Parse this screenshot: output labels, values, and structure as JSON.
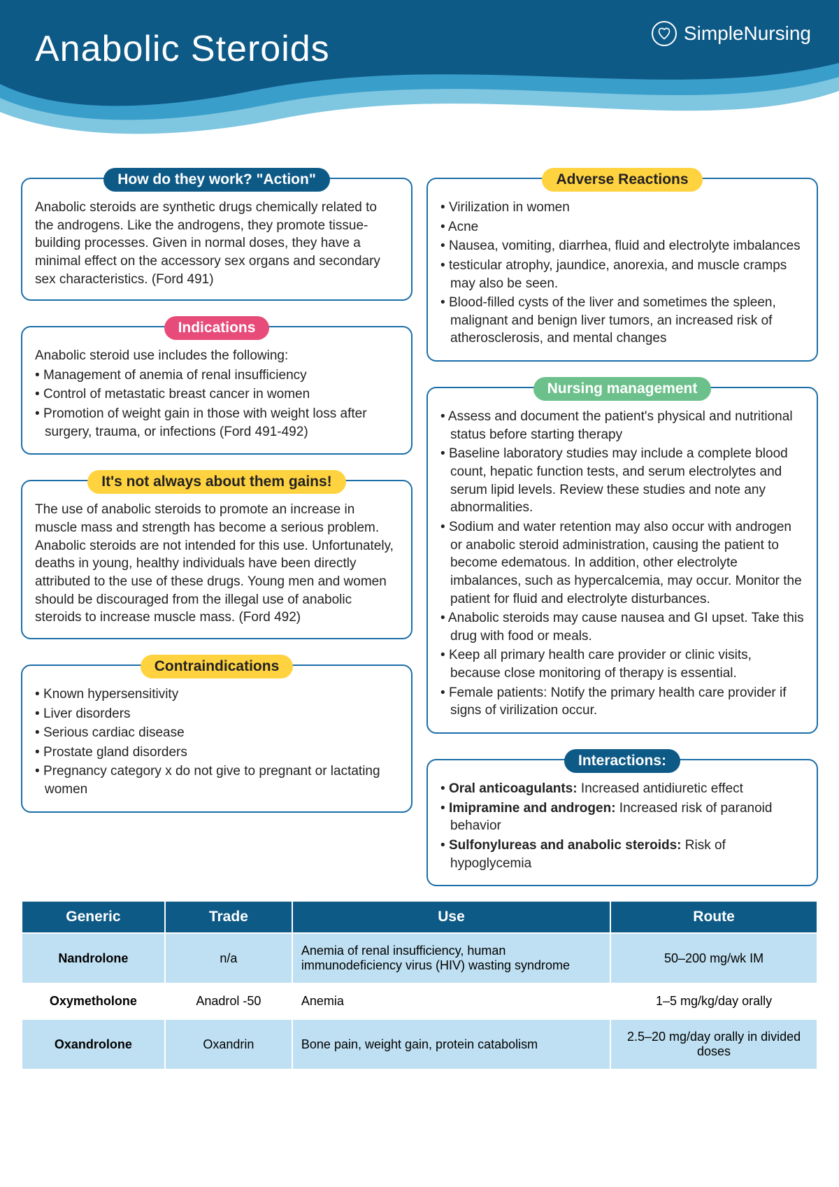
{
  "header": {
    "title": "Anabolic Steroids",
    "brand": "SimpleNursing"
  },
  "colors": {
    "header_dark": "#0e5a87",
    "header_mid": "#3a9ecb",
    "header_light": "#7fc6e0",
    "card_border": "#1b6ea8",
    "pill_blue": "#0e5a87",
    "pill_pink": "#e74b7a",
    "pill_yellow": "#ffd23f",
    "pill_green": "#6cc08b",
    "table_header": "#0e5a87",
    "table_row_alt": "#bfe0f2"
  },
  "cards": {
    "action": {
      "title": "How do they work? \"Action\"",
      "title_bg": "#0e5a87",
      "title_color": "#ffffff",
      "body": "Anabolic steroids are synthetic drugs chemically related to the androgens. Like the androgens, they promote tissue-building processes. Given in normal doses, they have a minimal effect on the accessory sex organs and secondary sex characteristics. (Ford 491)"
    },
    "indications": {
      "title": "Indications",
      "title_bg": "#e74b7a",
      "title_color": "#ffffff",
      "intro": "Anabolic steroid use includes the following:",
      "items": [
        "Management of anemia of renal insufficiency",
        "Control of metastatic breast cancer in women",
        "Promotion of weight gain in those with weight loss after surgery, trauma, or infections (Ford 491-492)"
      ]
    },
    "gains": {
      "title": "It's not always about them gains!",
      "title_bg": "#ffd23f",
      "title_color": "#222222",
      "body": "The use of anabolic steroids to promote an increase in muscle mass and strength has become a serious problem. Anabolic steroids are not intended for this use. Unfortunately, deaths in young, healthy individuals have been directly attributed to the use of these drugs. Young men and women should be discouraged from the illegal use of anabolic steroids to increase muscle mass. (Ford 492)"
    },
    "contra": {
      "title": "Contraindications",
      "title_bg": "#ffd23f",
      "title_color": "#222222",
      "items": [
        "Known hypersensitivity",
        "Liver disorders",
        "Serious cardiac disease",
        "Prostate gland disorders",
        "Pregnancy category x do not give to pregnant or lactating women"
      ]
    },
    "adverse": {
      "title": "Adverse Reactions",
      "title_bg": "#ffd23f",
      "title_color": "#222222",
      "items": [
        "Virilization in women",
        "Acne",
        "Nausea, vomiting, diarrhea, fluid and  electrolyte imbalances",
        "testicular atrophy, jaundice, anorexia, and muscle cramps may also be seen.",
        "Blood-filled cysts of the liver and sometimes the spleen, malignant and benign liver tumors, an increased risk of atherosclerosis, and mental changes"
      ]
    },
    "nursing": {
      "title": "Nursing management",
      "title_bg": "#6cc08b",
      "title_color": "#ffffff",
      "items": [
        "Assess and document the patient's physical and nutritional status before starting therapy",
        "Baseline laboratory studies may include a complete blood count, hepatic function tests, and serum electrolytes and serum lipid levels. Review these studies and note any abnormalities.",
        "Sodium and water retention may also occur with androgen or anabolic steroid administration, causing the patient to become edematous. In addition, other electrolyte imbalances, such as hypercalcemia, may occur. Monitor the patient for fluid and electrolyte disturbances.",
        "Anabolic steroids may cause nausea and GI upset. Take this drug with food or meals.",
        "Keep all primary health care provider or clinic visits, because close monitoring of therapy is essential.",
        "Female patients: Notify the primary health care provider if signs of virilization occur."
      ]
    },
    "interactions": {
      "title": "Interactions:",
      "title_bg": "#0e5a87",
      "title_color": "#ffffff",
      "items": [
        {
          "bold": "Oral anticoagulants:",
          "rest": " Increased antidiuretic effect"
        },
        {
          "bold": "Imipramine and androgen:",
          "rest": " Increased risk of paranoid behavior"
        },
        {
          "bold": "Sulfonylureas and anabolic steroids:",
          "rest": " Risk of hypoglycemia"
        }
      ]
    }
  },
  "table": {
    "columns": [
      "Generic",
      "Trade",
      "Use",
      "Route"
    ],
    "rows": [
      [
        "Nandrolone",
        "n/a",
        "Anemia of renal insufficiency, human immunodeficiency virus (HIV) wasting syndrome",
        "50–200 mg/wk IM"
      ],
      [
        "Oxymetholone",
        "Anadrol -50",
        "Anemia",
        "1–5 mg/kg/day orally"
      ],
      [
        "Oxandrolone",
        "Oxandrin",
        "Bone pain, weight gain, protein catabolism",
        "2.5–20 mg/day orally in divided doses"
      ]
    ],
    "col_widths": [
      "18%",
      "16%",
      "40%",
      "26%"
    ]
  }
}
